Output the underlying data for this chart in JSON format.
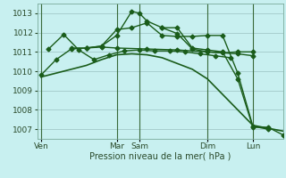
{
  "background_color": "#c8f0f0",
  "grid_color": "#a8cece",
  "line_color": "#1a5c1a",
  "xlabel": "Pression niveau de la mer( hPa )",
  "ylim": [
    1006.5,
    1013.5
  ],
  "yticks": [
    1007,
    1008,
    1009,
    1010,
    1011,
    1012,
    1013
  ],
  "day_labels": [
    "Ven",
    "Mar",
    "Sam",
    "Dim",
    "Lun"
  ],
  "day_positions": [
    0,
    10,
    13,
    22,
    28
  ],
  "vline_positions": [
    0,
    10,
    13,
    22,
    28
  ],
  "xlim": [
    -0.5,
    32
  ],
  "series": [
    {
      "x": [
        0,
        2,
        4,
        6,
        8,
        10,
        12,
        14,
        16,
        18,
        20,
        22,
        24,
        26,
        28,
        30,
        32
      ],
      "y": [
        1009.7,
        1009.9,
        1010.1,
        1010.3,
        1010.6,
        1010.85,
        1010.9,
        1010.85,
        1010.7,
        1010.4,
        1010.1,
        1009.6,
        1008.8,
        1008.0,
        1007.2,
        1007.05,
        1006.9
      ],
      "marker": null,
      "linewidth": 1.2
    },
    {
      "x": [
        0,
        2,
        4,
        6,
        8,
        10,
        14,
        18,
        22,
        26,
        28
      ],
      "y": [
        1009.8,
        1010.6,
        1011.15,
        1011.2,
        1011.25,
        1011.2,
        1011.15,
        1011.1,
        1011.0,
        1010.9,
        1010.8
      ],
      "marker": "D",
      "linewidth": 1.0
    },
    {
      "x": [
        1,
        3,
        5,
        7,
        9,
        11,
        13,
        15,
        17,
        19,
        21,
        23,
        25
      ],
      "y": [
        1011.15,
        1011.9,
        1011.1,
        1010.6,
        1010.85,
        1011.05,
        1011.1,
        1011.05,
        1011.05,
        1011.0,
        1010.9,
        1010.8,
        1010.7
      ],
      "marker": "D",
      "linewidth": 1.0
    },
    {
      "x": [
        4,
        6,
        8,
        10,
        12,
        13,
        14,
        16,
        18,
        20,
        22,
        24,
        26,
        28
      ],
      "y": [
        1011.2,
        1011.2,
        1011.3,
        1011.85,
        1013.1,
        1013.0,
        1012.6,
        1012.25,
        1011.95,
        1011.15,
        1011.0,
        1010.95,
        1011.0,
        1011.0
      ],
      "marker": "D",
      "linewidth": 1.0
    },
    {
      "x": [
        6,
        8,
        10,
        12,
        14,
        16,
        18,
        20,
        22,
        24,
        26,
        28,
        30
      ],
      "y": [
        1011.2,
        1011.3,
        1012.15,
        1012.25,
        1012.5,
        1011.85,
        1011.8,
        1011.8,
        1011.85,
        1011.85,
        1009.9,
        1007.15,
        1007.0
      ],
      "marker": "D",
      "linewidth": 1.0
    },
    {
      "x": [
        16,
        18,
        20,
        22,
        24,
        26,
        28,
        30,
        32
      ],
      "y": [
        1012.25,
        1012.25,
        1011.2,
        1011.1,
        1011.0,
        1009.6,
        1007.1,
        1007.1,
        1006.7
      ],
      "marker": "D",
      "linewidth": 1.0
    }
  ]
}
